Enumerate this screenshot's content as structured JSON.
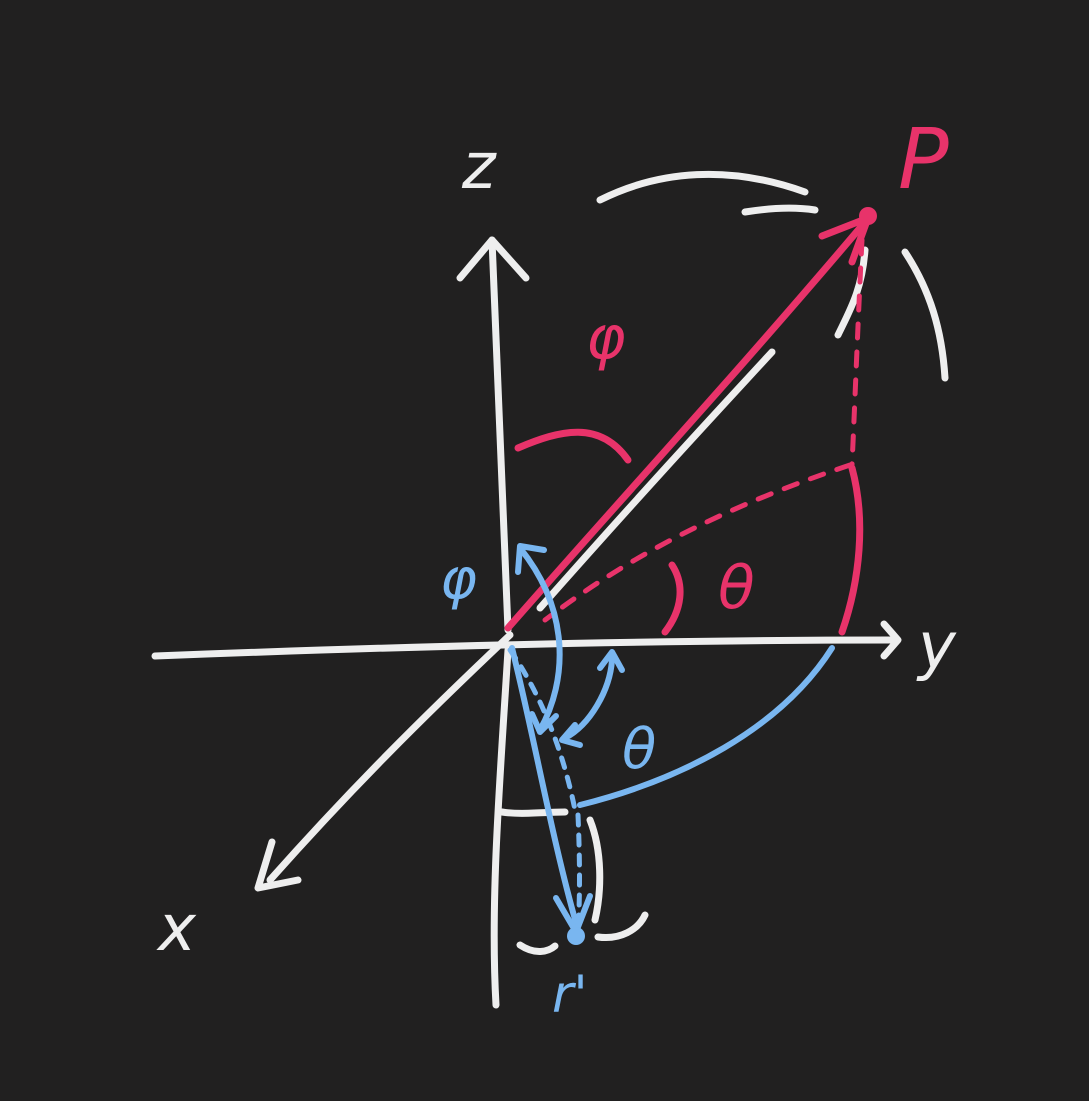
{
  "axes": {
    "z_label": "z",
    "y_label": "y",
    "x_label": "x"
  },
  "point_p": {
    "label": "P"
  },
  "point_r": {
    "label": "r'"
  },
  "angles": {
    "phi_pink": "φ",
    "theta_pink": "θ",
    "phi_blue": "φ",
    "theta_blue": "θ"
  },
  "colors": {
    "background": "#212020",
    "chalk": "#eeeeee",
    "pink": "#e8336a",
    "blue": "#79b6f0"
  }
}
